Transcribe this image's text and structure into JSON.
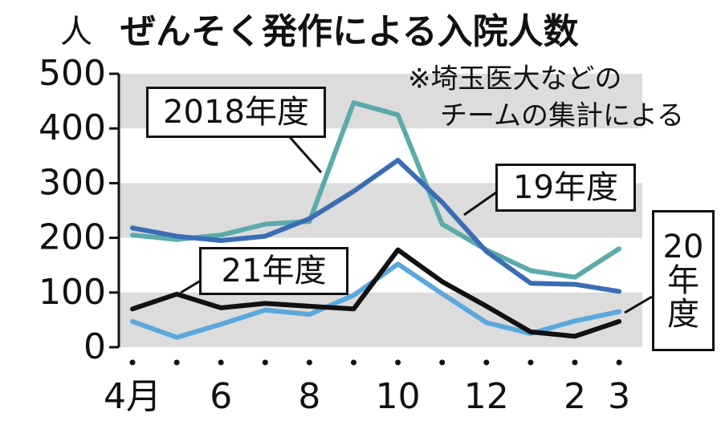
{
  "chart_data": {
    "type": "line",
    "title": "ぜんそく発作による入院人数",
    "y_label": "人",
    "note": [
      "※埼玉医大などの",
      "チームの集計による"
    ],
    "categories": [
      "4月",
      null,
      "6",
      null,
      "8",
      null,
      "10",
      null,
      "12",
      null,
      "2",
      "3"
    ],
    "ylim": [
      0,
      500
    ],
    "yticks": [
      0,
      100,
      200,
      300,
      400,
      500
    ],
    "grid": true,
    "series": [
      {
        "name": "2018年度",
        "color": "#5aabaa",
        "values": [
          205,
          197,
          205,
          225,
          230,
          447,
          425,
          225,
          178,
          140,
          128,
          180
        ]
      },
      {
        "name": "20年度",
        "color": "#5aa8dc",
        "values": [
          47,
          18,
          42,
          68,
          60,
          95,
          152,
          98,
          45,
          25,
          48,
          65
        ]
      },
      {
        "name": "19年度",
        "color": "#3a6db5",
        "values": [
          218,
          203,
          195,
          203,
          235,
          285,
          342,
          265,
          175,
          117,
          115,
          102
        ]
      },
      {
        "name": "21年度",
        "color": "#111111",
        "values": [
          70,
          97,
          72,
          80,
          75,
          70,
          178,
          120,
          75,
          28,
          20,
          47
        ]
      }
    ]
  }
}
